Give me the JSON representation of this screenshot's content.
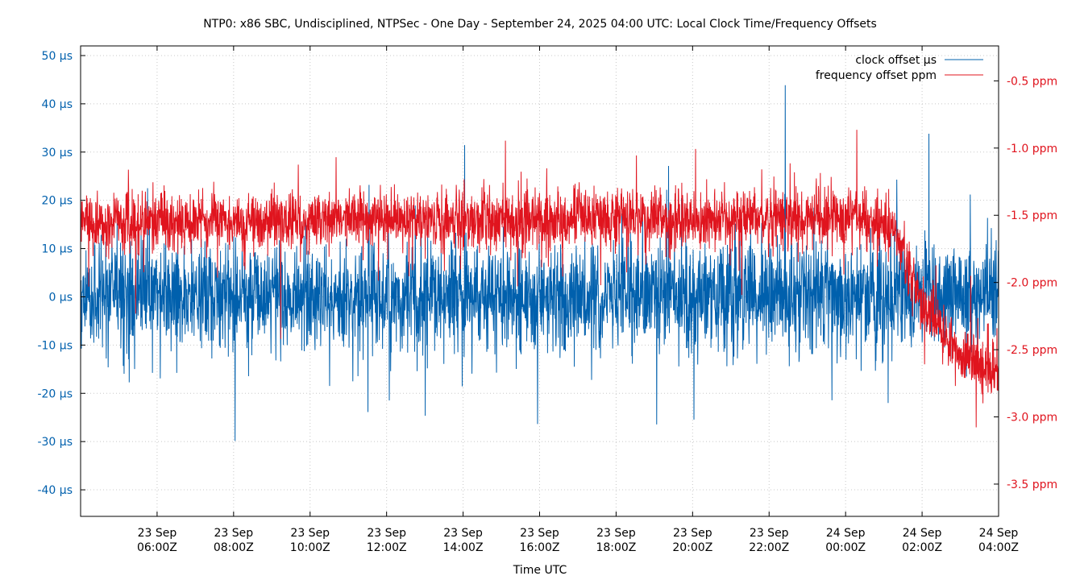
{
  "chart_data": {
    "type": "line",
    "title": "NTP0: x86 SBC, Undisciplined, NTPSec - One Day - September 24, 2025 04:00 UTC: Local Clock Time/Frequency Offsets",
    "xlabel": "Time UTC",
    "ylabel_left": "",
    "ylabel_right": "",
    "x_range_hours": [
      0,
      24
    ],
    "x_start_label": "2025-09-23 04:00Z",
    "x_ticks": [
      {
        "hour": 2,
        "line1": "23 Sep",
        "line2": "06:00Z"
      },
      {
        "hour": 4,
        "line1": "23 Sep",
        "line2": "08:00Z"
      },
      {
        "hour": 6,
        "line1": "23 Sep",
        "line2": "10:00Z"
      },
      {
        "hour": 8,
        "line1": "23 Sep",
        "line2": "12:00Z"
      },
      {
        "hour": 10,
        "line1": "23 Sep",
        "line2": "14:00Z"
      },
      {
        "hour": 12,
        "line1": "23 Sep",
        "line2": "16:00Z"
      },
      {
        "hour": 14,
        "line1": "23 Sep",
        "line2": "18:00Z"
      },
      {
        "hour": 16,
        "line1": "23 Sep",
        "line2": "20:00Z"
      },
      {
        "hour": 18,
        "line1": "23 Sep",
        "line2": "22:00Z"
      },
      {
        "hour": 20,
        "line1": "24 Sep",
        "line2": "00:00Z"
      },
      {
        "hour": 22,
        "line1": "24 Sep",
        "line2": "02:00Z"
      },
      {
        "hour": 24,
        "line1": "24 Sep",
        "line2": "04:00Z"
      }
    ],
    "y_left": {
      "range": [
        -45.5,
        52
      ],
      "unit": "µs",
      "ticks": [
        {
          "value": 50,
          "label": "50 µs"
        },
        {
          "value": 40,
          "label": "40 µs"
        },
        {
          "value": 30,
          "label": "30 µs"
        },
        {
          "value": 20,
          "label": "20 µs"
        },
        {
          "value": 10,
          "label": "10 µs"
        },
        {
          "value": 0,
          "label": "0 µs"
        },
        {
          "value": -10,
          "label": "-10 µs"
        },
        {
          "value": -20,
          "label": "-20 µs"
        },
        {
          "value": -30,
          "label": "-30 µs"
        },
        {
          "value": -40,
          "label": "-40 µs"
        }
      ]
    },
    "y_right": {
      "range": [
        -3.74,
        -0.24
      ],
      "unit": "ppm",
      "ticks": [
        {
          "value": -0.5,
          "label": "-0.5 ppm"
        },
        {
          "value": -1.0,
          "label": "-1.0 ppm"
        },
        {
          "value": -1.5,
          "label": "-1.5 ppm"
        },
        {
          "value": -2.0,
          "label": "-2.0 ppm"
        },
        {
          "value": -2.5,
          "label": "-2.5 ppm"
        },
        {
          "value": -3.0,
          "label": "-3.0 ppm"
        },
        {
          "value": -3.5,
          "label": "-3.5 ppm"
        }
      ]
    },
    "legend_position": "top-right",
    "series": [
      {
        "name": "clock offset µs",
        "axis": "left",
        "color": "#0060ad",
        "samples": 3400,
        "profile": {
          "mean_hours": [
            0,
            24
          ],
          "mean_values": [
            0,
            0
          ],
          "noise_sd": 5.5,
          "spike_sd": 13
        }
      },
      {
        "name": "frequency offset ppm",
        "axis": "right",
        "color": "#e0141e",
        "samples": 3400,
        "profile": {
          "mean_hours": [
            0,
            20,
            21.2,
            22,
            23,
            24
          ],
          "mean_values": [
            -1.55,
            -1.52,
            -1.58,
            -2.15,
            -2.55,
            -2.65
          ],
          "noise_sd": 0.11,
          "spike_sd": 0.28
        }
      }
    ]
  }
}
